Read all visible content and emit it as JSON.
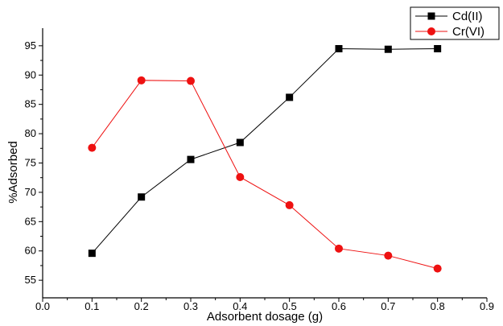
{
  "chart_data": {
    "type": "line",
    "xlabel": "Adsorbent dosage (g)",
    "ylabel": "%Adsorbed",
    "xlim": [
      0.0,
      0.9
    ],
    "ylim": [
      52,
      98
    ],
    "x_ticks": [
      0.0,
      0.1,
      0.2,
      0.3,
      0.4,
      0.5,
      0.6,
      0.7,
      0.8,
      0.9
    ],
    "x_tick_labels": [
      "0.0",
      "0.1",
      "0.2",
      "0.3",
      "0.4",
      "0.5",
      "0.6",
      "0.7",
      "0.8",
      "0.9"
    ],
    "y_ticks": [
      55,
      60,
      65,
      70,
      75,
      80,
      85,
      90,
      95
    ],
    "y_tick_labels": [
      "55",
      "60",
      "65",
      "70",
      "75",
      "80",
      "85",
      "90",
      "95"
    ],
    "grid": false,
    "legend_position": "top-right",
    "x": [
      0.1,
      0.2,
      0.3,
      0.4,
      0.5,
      0.6,
      0.7,
      0.8
    ],
    "series": [
      {
        "name": "Cd(II)",
        "color": "#000000",
        "marker": "square",
        "values": [
          59.6,
          69.2,
          75.6,
          78.5,
          86.2,
          94.5,
          94.4,
          94.5
        ]
      },
      {
        "name": "Cr(VI)",
        "color": "#ee1111",
        "marker": "circle",
        "values": [
          77.6,
          89.1,
          89.0,
          72.6,
          67.8,
          60.4,
          59.2,
          57.0
        ]
      }
    ]
  }
}
